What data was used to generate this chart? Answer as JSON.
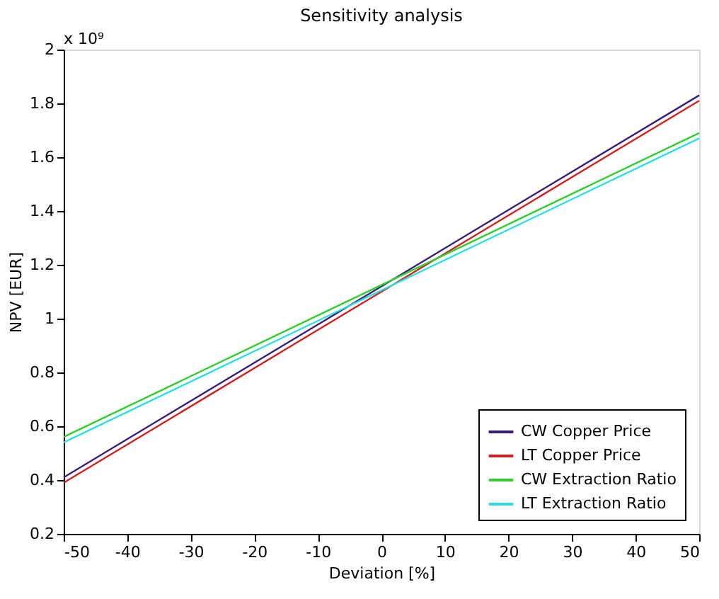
{
  "chart_data": {
    "type": "line",
    "title": "Sensitivity analysis",
    "xlabel": "Deviation [%]",
    "ylabel": "NPV [EUR]",
    "annotations": [
      "x 10⁹"
    ],
    "x": [
      -50,
      50
    ],
    "series": [
      {
        "name": "CW Copper Price",
        "color": "#3b1e78",
        "values": [
          0.41,
          1.83
        ]
      },
      {
        "name": "LT Copper Price",
        "color": "#cc2222",
        "values": [
          0.39,
          1.81
        ]
      },
      {
        "name": "CW Extraction Ratio",
        "color": "#33cc33",
        "values": [
          0.56,
          1.69
        ]
      },
      {
        "name": "LT  Extraction Ratio",
        "color": "#33dddd",
        "values": [
          0.54,
          1.67
        ]
      }
    ],
    "xlim": [
      -50,
      50
    ],
    "xticks": [
      -50,
      -40,
      -30,
      -20,
      -10,
      0,
      10,
      20,
      30,
      40,
      50
    ],
    "ylim": [
      0.2,
      2
    ],
    "yticks": [
      0.2,
      0.4,
      0.6,
      0.8,
      1,
      1.2,
      1.4,
      1.6,
      1.8,
      2
    ],
    "grid": false,
    "legend": "bottom right",
    "marker": "none",
    "line_style": "solid"
  }
}
